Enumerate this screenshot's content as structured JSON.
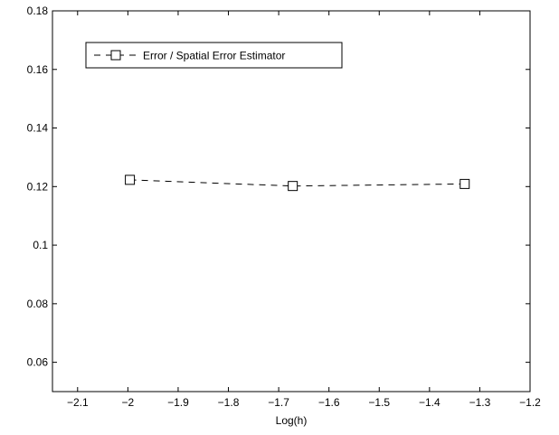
{
  "chart_data": {
    "type": "line",
    "title": "",
    "xlabel": "Log(h)",
    "ylabel": "",
    "xlim": [
      -2.15,
      -1.2
    ],
    "ylim": [
      0.05,
      0.18
    ],
    "x_ticks": [
      -2.1,
      -2.0,
      -1.9,
      -1.8,
      -1.7,
      -1.6,
      -1.5,
      -1.4,
      -1.3,
      -1.2
    ],
    "x_tick_labels": [
      "−2.1",
      "−2",
      "−1.9",
      "−1.8",
      "−1.7",
      "−1.6",
      "−1.5",
      "−1.4",
      "−1.3",
      "−1.2"
    ],
    "y_ticks": [
      0.06,
      0.08,
      0.1,
      0.12,
      0.14,
      0.16,
      0.18
    ],
    "y_tick_labels": [
      "0.06",
      "0.08",
      "0.1",
      "0.12",
      "0.14",
      "0.16",
      "0.18"
    ],
    "grid": false,
    "legend_position": "top-left",
    "series": [
      {
        "name": "Error / Spatial Error Estimator",
        "x": [
          -1.996,
          -1.672,
          -1.33
        ],
        "y": [
          0.1223,
          0.1202,
          0.1209
        ],
        "line_style": "dashed",
        "marker": "square",
        "color": "#000000"
      }
    ]
  }
}
